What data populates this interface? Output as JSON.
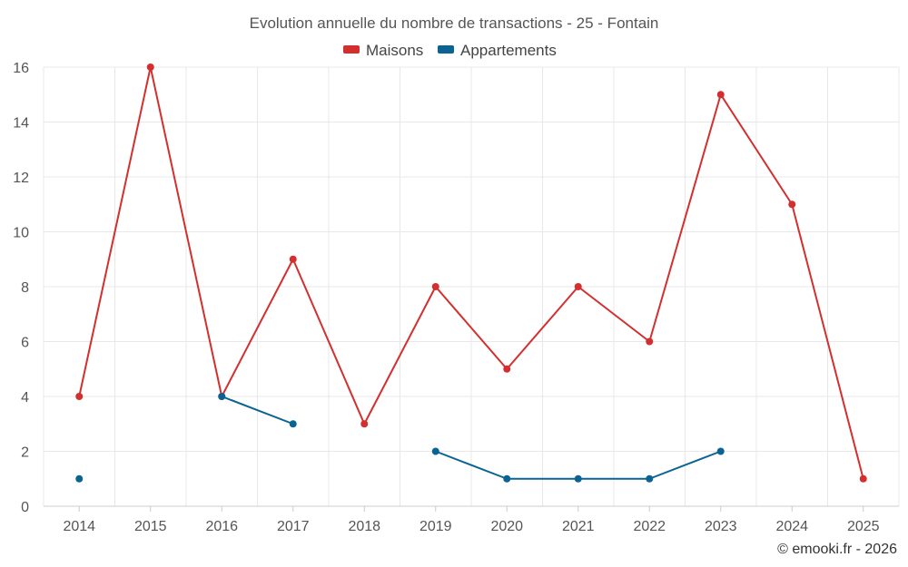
{
  "chart_data": {
    "type": "line",
    "title": "Evolution annuelle du nombre de transactions - 25 - Fontain",
    "categories": [
      "2014",
      "2015",
      "2016",
      "2017",
      "2018",
      "2019",
      "2020",
      "2021",
      "2022",
      "2023",
      "2024",
      "2025"
    ],
    "ylim": [
      0,
      16
    ],
    "yticks": [
      0,
      2,
      4,
      6,
      8,
      10,
      12,
      14,
      16
    ],
    "grid": true,
    "legend_position": "top-center",
    "series": [
      {
        "name": "Maisons",
        "color": "#d32f2f",
        "values": [
          4,
          16,
          4,
          9,
          3,
          8,
          5,
          8,
          6,
          15,
          11,
          1
        ]
      },
      {
        "name": "Appartements",
        "color": "#0b6394",
        "values": [
          1,
          null,
          4,
          3,
          null,
          2,
          1,
          1,
          1,
          2,
          null,
          null
        ]
      }
    ],
    "credit": "© emooki.fr - 2026"
  }
}
